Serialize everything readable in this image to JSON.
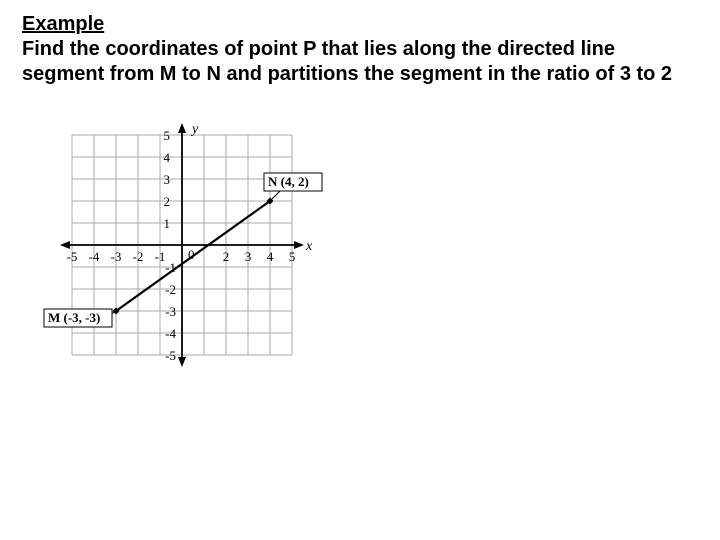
{
  "heading": {
    "example": "Example",
    "text_line1": "Find the coordinates of point P that lies along the directed line",
    "text_line2": "segment from M to N and partitions the segment in the ratio of 3 to 2"
  },
  "chart": {
    "type": "line",
    "xlim": [
      -5,
      5
    ],
    "ylim": [
      -5,
      5
    ],
    "xtick_step": 1,
    "ytick_step": 1,
    "x_tick_labels_neg": [
      "-5",
      "-4",
      "-3",
      "-2",
      "-1"
    ],
    "x_tick_labels_pos": [
      "2",
      "3",
      "4",
      "5"
    ],
    "y_tick_labels_pos": [
      "1",
      "2",
      "3",
      "4",
      "5"
    ],
    "y_tick_labels_neg": [
      "-1",
      "-2",
      "-3",
      "-4",
      "-5"
    ],
    "axis_label_x": "x",
    "axis_label_y": "y",
    "origin_label": "0",
    "grid_color": "#a8a8a8",
    "axis_color": "#000000",
    "background_color": "#ffffff",
    "line_color": "#000000",
    "line_width": 2.2,
    "point_marker": "diamond",
    "point_size": 7,
    "point_fill": "#000000",
    "points": {
      "M": {
        "x": -3,
        "y": -3,
        "label": "M (-3, -3)"
      },
      "N": {
        "x": 4,
        "y": 2,
        "label": "N (4, 2)"
      }
    },
    "label_box_border": "#000000",
    "label_box_bg": "#ffffff",
    "label_fontsize": 13,
    "tick_fontsize": 13
  }
}
